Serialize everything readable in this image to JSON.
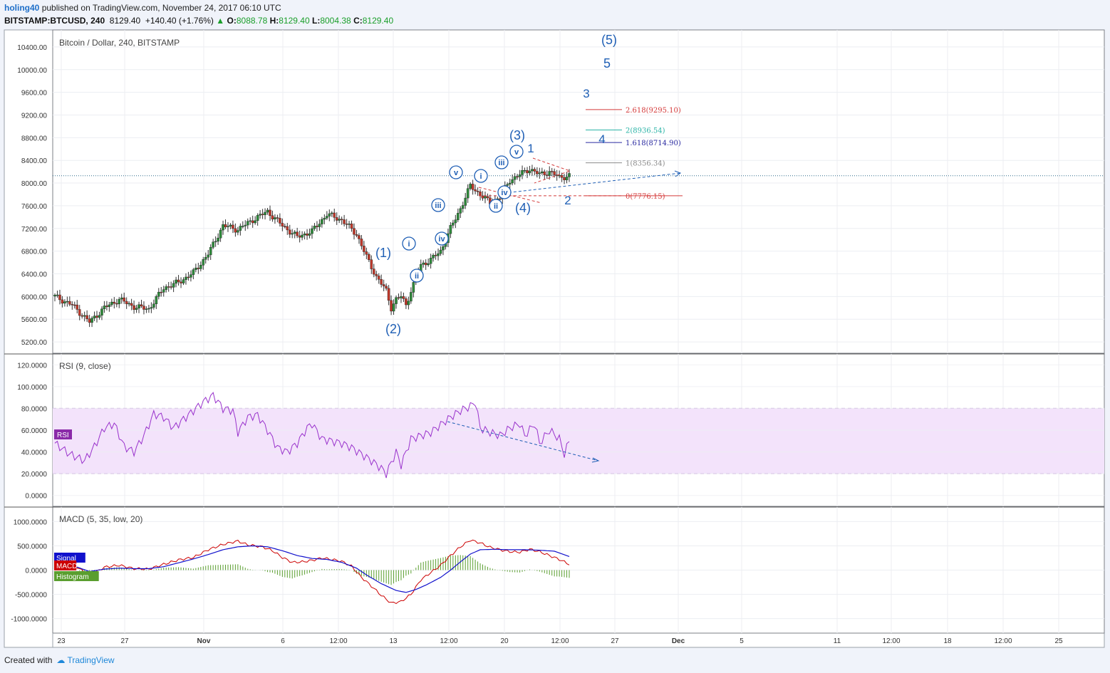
{
  "header": {
    "author": "holing40",
    "published_text": "published on TradingView.com, November 24, 2017 06:10 UTC",
    "symbol": "BITSTAMP:BTCUSD, 240",
    "last": "8129.40",
    "change": "+140.40 (+1.76%)",
    "o_label": "O:",
    "o": "8088.78",
    "h_label": "H:",
    "h": "8129.40",
    "l_label": "L:",
    "l": "8004.38",
    "c_label": "C:",
    "c": "8129.40"
  },
  "footer": {
    "created_with": "Created with",
    "brand": "TradingView"
  },
  "colors": {
    "up": "#2e8b3b",
    "down": "#c0392b",
    "wave": "#1f5fb5",
    "rsi": "#9932cc",
    "rsi_band": "#f3e3fb",
    "macd": "#cc0000",
    "signal": "#1111cc",
    "hist": "#5a9e2f",
    "fib_2618": "#d43a3a",
    "fib_2": "#2ab3a6",
    "fib_1618": "#2a2aa0",
    "fib_1": "#8a8a8a",
    "fib_0": "#d43a3a"
  },
  "chart_data": [
    {
      "type": "candlestick",
      "title": "Bitcoin / Dollar, 240, BITSTAMP",
      "ylim": [
        5000,
        10700
      ],
      "y_ticks": [
        "10400.00",
        "10000.00",
        "9600.00",
        "9200.00",
        "8800.00",
        "8400.00",
        "8000.00",
        "7600.00",
        "7200.00",
        "6800.00",
        "6400.00",
        "6000.00",
        "5600.00",
        "5200.00"
      ],
      "x_tick_labels": [
        "23",
        "27",
        "Nov",
        "6",
        "12:00",
        "13",
        "12:00",
        "20",
        "12:00",
        "27",
        "Dec",
        "5",
        "11",
        "12:00",
        "18",
        "12:00",
        "25"
      ],
      "last_price": 8129.4,
      "anchors_close": [
        [
          0,
          6000
        ],
        [
          7,
          5850
        ],
        [
          14,
          5550
        ],
        [
          20,
          5800
        ],
        [
          26,
          5950
        ],
        [
          32,
          5820
        ],
        [
          38,
          5780
        ],
        [
          44,
          6150
        ],
        [
          50,
          6250
        ],
        [
          56,
          6420
        ],
        [
          62,
          6750
        ],
        [
          68,
          7250
        ],
        [
          74,
          7180
        ],
        [
          80,
          7350
        ],
        [
          86,
          7500
        ],
        [
          92,
          7250
        ],
        [
          98,
          7050
        ],
        [
          104,
          7150
        ],
        [
          110,
          7450
        ],
        [
          116,
          7350
        ],
        [
          122,
          7100
        ],
        [
          126,
          6700
        ],
        [
          130,
          6350
        ],
        [
          134,
          6100
        ],
        [
          136,
          5800
        ],
        [
          138,
          5950
        ],
        [
          140,
          6000
        ],
        [
          142,
          5850
        ],
        [
          144,
          6100
        ],
        [
          148,
          6550
        ],
        [
          152,
          6650
        ],
        [
          156,
          6800
        ],
        [
          160,
          7200
        ],
        [
          164,
          7550
        ],
        [
          168,
          7950
        ],
        [
          172,
          7800
        ],
        [
          176,
          7650
        ],
        [
          180,
          7750
        ],
        [
          184,
          8050
        ],
        [
          188,
          8150
        ],
        [
          192,
          8250
        ],
        [
          196,
          8150
        ],
        [
          200,
          8200
        ],
        [
          204,
          8100
        ],
        [
          208,
          8129
        ]
      ],
      "wave_labels": [
        "(5)",
        "5",
        "3",
        "4",
        "(3)",
        "1",
        "v",
        "iii",
        "v",
        "i",
        "iv",
        "ii",
        "(4)",
        "2",
        "iii",
        "iv",
        "(1)",
        "i",
        "ii",
        "(2)"
      ],
      "fib_levels": [
        {
          "label": "2.618(9295.10)",
          "value": 9295.1,
          "key": "fib_2618"
        },
        {
          "label": "2(8936.54)",
          "value": 8936.54,
          "key": "fib_2"
        },
        {
          "label": "1.618(8714.90)",
          "value": 8714.9,
          "key": "fib_1618"
        },
        {
          "label": "1(8356.34)",
          "value": 8356.34,
          "key": "fib_1"
        },
        {
          "label": "0(7776.15)",
          "value": 7776.15,
          "key": "fib_0"
        }
      ]
    },
    {
      "type": "line",
      "title": "RSI (9, close)",
      "legend": "RSI",
      "ylim": [
        -10,
        130
      ],
      "y_ticks": [
        "120.0000",
        "100.0000",
        "80.0000",
        "60.0000",
        "40.0000",
        "20.0000",
        "0.0000"
      ],
      "band": [
        20,
        80
      ],
      "anchors": [
        [
          0,
          48
        ],
        [
          6,
          38
        ],
        [
          12,
          32
        ],
        [
          16,
          45
        ],
        [
          20,
          62
        ],
        [
          24,
          66
        ],
        [
          28,
          45
        ],
        [
          32,
          40
        ],
        [
          36,
          55
        ],
        [
          40,
          75
        ],
        [
          44,
          72
        ],
        [
          48,
          62
        ],
        [
          52,
          70
        ],
        [
          56,
          78
        ],
        [
          60,
          86
        ],
        [
          64,
          92
        ],
        [
          68,
          80
        ],
        [
          72,
          78
        ],
        [
          74,
          58
        ],
        [
          78,
          72
        ],
        [
          82,
          74
        ],
        [
          86,
          60
        ],
        [
          90,
          44
        ],
        [
          94,
          40
        ],
        [
          98,
          48
        ],
        [
          102,
          62
        ],
        [
          104,
          66
        ],
        [
          108,
          52
        ],
        [
          112,
          50
        ],
        [
          116,
          48
        ],
        [
          120,
          44
        ],
        [
          124,
          38
        ],
        [
          128,
          32
        ],
        [
          132,
          25
        ],
        [
          134,
          20
        ],
        [
          138,
          40
        ],
        [
          140,
          28
        ],
        [
          144,
          52
        ],
        [
          148,
          55
        ],
        [
          152,
          58
        ],
        [
          156,
          65
        ],
        [
          160,
          72
        ],
        [
          164,
          78
        ],
        [
          168,
          82
        ],
        [
          170,
          86
        ],
        [
          172,
          62
        ],
        [
          176,
          58
        ],
        [
          180,
          55
        ],
        [
          184,
          62
        ],
        [
          188,
          66
        ],
        [
          190,
          55
        ],
        [
          194,
          66
        ],
        [
          196,
          48
        ],
        [
          200,
          60
        ],
        [
          204,
          52
        ],
        [
          206,
          38
        ],
        [
          208,
          50
        ]
      ]
    },
    {
      "type": "line",
      "title": "MACD (5, 35, low, 20)",
      "ylim": [
        -1300,
        1300
      ],
      "y_ticks": [
        "1000.0000",
        "500.0000",
        "0.0000",
        "-500.0000",
        "-1000.0000"
      ],
      "series": [
        {
          "name": "MACD",
          "anchors": [
            [
              0,
              60
            ],
            [
              8,
              100
            ],
            [
              14,
              -120
            ],
            [
              20,
              60
            ],
            [
              26,
              100
            ],
            [
              32,
              30
            ],
            [
              38,
              20
            ],
            [
              44,
              120
            ],
            [
              50,
              210
            ],
            [
              56,
              260
            ],
            [
              62,
              420
            ],
            [
              68,
              530
            ],
            [
              74,
              600
            ],
            [
              78,
              520
            ],
            [
              84,
              480
            ],
            [
              88,
              400
            ],
            [
              92,
              260
            ],
            [
              96,
              160
            ],
            [
              100,
              170
            ],
            [
              104,
              200
            ],
            [
              108,
              250
            ],
            [
              112,
              220
            ],
            [
              116,
              180
            ],
            [
              120,
              80
            ],
            [
              124,
              -150
            ],
            [
              128,
              -330
            ],
            [
              132,
              -520
            ],
            [
              136,
              -680
            ],
            [
              140,
              -650
            ],
            [
              144,
              -500
            ],
            [
              148,
              -200
            ],
            [
              152,
              -50
            ],
            [
              156,
              100
            ],
            [
              160,
              300
            ],
            [
              164,
              480
            ],
            [
              168,
              620
            ],
            [
              172,
              560
            ],
            [
              176,
              470
            ],
            [
              180,
              420
            ],
            [
              184,
              380
            ],
            [
              188,
              370
            ],
            [
              192,
              430
            ],
            [
              196,
              380
            ],
            [
              200,
              300
            ],
            [
              204,
              220
            ],
            [
              208,
              120
            ]
          ]
        },
        {
          "name": "Signal",
          "anchors": [
            [
              0,
              40
            ],
            [
              8,
              80
            ],
            [
              14,
              -30
            ],
            [
              20,
              20
            ],
            [
              26,
              40
            ],
            [
              32,
              30
            ],
            [
              38,
              30
            ],
            [
              44,
              70
            ],
            [
              50,
              150
            ],
            [
              56,
              230
            ],
            [
              62,
              320
            ],
            [
              68,
              420
            ],
            [
              74,
              480
            ],
            [
              80,
              500
            ],
            [
              86,
              480
            ],
            [
              92,
              400
            ],
            [
              98,
              300
            ],
            [
              104,
              240
            ],
            [
              110,
              220
            ],
            [
              116,
              160
            ],
            [
              122,
              40
            ],
            [
              126,
              -100
            ],
            [
              132,
              -280
            ],
            [
              138,
              -420
            ],
            [
              142,
              -460
            ],
            [
              146,
              -400
            ],
            [
              150,
              -310
            ],
            [
              156,
              -150
            ],
            [
              160,
              0
            ],
            [
              164,
              170
            ],
            [
              168,
              330
            ],
            [
              172,
              420
            ],
            [
              178,
              430
            ],
            [
              184,
              420
            ],
            [
              190,
              420
            ],
            [
              196,
              410
            ],
            [
              202,
              390
            ],
            [
              208,
              280
            ]
          ]
        }
      ],
      "histogram_note": "Histogram"
    }
  ]
}
